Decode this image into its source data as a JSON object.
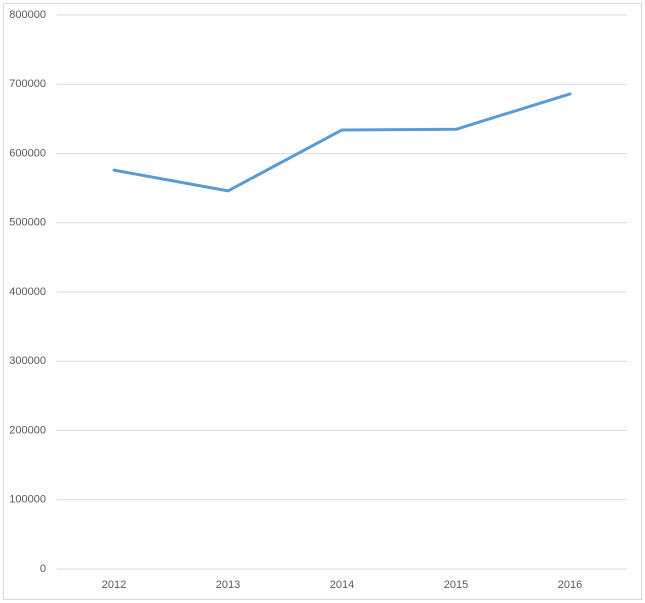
{
  "chart_data": {
    "type": "line",
    "categories": [
      "2012",
      "2013",
      "2014",
      "2015",
      "2016"
    ],
    "series": [
      {
        "color": "#5b9bd5",
        "values": [
          576000,
          546000,
          634000,
          635000,
          686000
        ]
      }
    ],
    "ylim": [
      0,
      800000
    ],
    "yticks": [
      0,
      100000,
      200000,
      300000,
      400000,
      500000,
      600000,
      700000,
      800000
    ],
    "grid": true
  }
}
